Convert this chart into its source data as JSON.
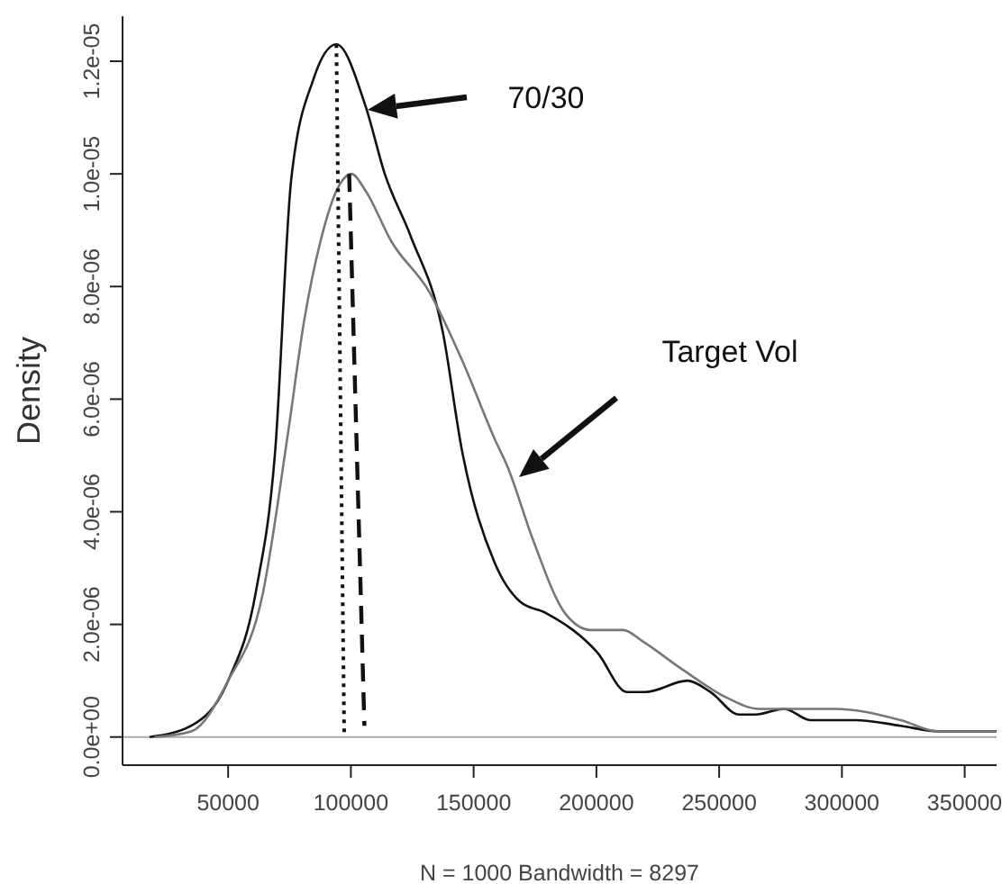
{
  "chart_data": {
    "type": "line",
    "xlabel": "N = 1000   Bandwidth = 8297",
    "ylabel": "Density",
    "xlim": [
      7000,
      363000
    ],
    "xticks": [
      50000,
      100000,
      150000,
      200000,
      250000,
      300000,
      350000
    ],
    "ylim": [
      -5e-07,
      1.28e-05
    ],
    "yticks": [
      {
        "value": 0,
        "label": "0.0e+00"
      },
      {
        "value": 2e-06,
        "label": "2.0e-06"
      },
      {
        "value": 4e-06,
        "label": "4.0e-06"
      },
      {
        "value": 6e-06,
        "label": "6.0e-06"
      },
      {
        "value": 8e-06,
        "label": "8.0e-06"
      },
      {
        "value": 1e-05,
        "label": "1.0e-05"
      },
      {
        "value": 1.2e-05,
        "label": "1.2e-05"
      }
    ],
    "marker": "none",
    "series": [
      {
        "color": "#111111",
        "line_style": "solid",
        "x": [
          18000,
          35000,
          50000,
          61400,
          69200,
          75700,
          84900,
          94100,
          106000,
          113800,
          124300,
          137400,
          145200,
          158500,
          169000,
          179500,
          200400,
          212400,
          220000,
          237100,
          246400,
          258200,
          264800,
          276600,
          287100,
          305500,
          323900,
          339300,
          363000
        ],
        "values": [
          0,
          2e-07,
          1e-06,
          2.6e-06,
          5.1e-06,
          9.9e-06,
          1.17e-05,
          1.23e-05,
          1.12e-05,
          1e-05,
          8.9e-06,
          7.2e-06,
          5.1e-06,
          3.1e-06,
          2.4e-06,
          2.2e-06,
          1.5e-06,
          8e-07,
          8e-07,
          1e-06,
          8e-07,
          4e-07,
          4e-07,
          5e-07,
          3e-07,
          3e-07,
          2e-07,
          1e-07,
          1e-07
        ]
      },
      {
        "color": "#777777",
        "line_style": "solid",
        "x": [
          20000,
          35000,
          50000,
          63900,
          74400,
          81000,
          87600,
          95300,
          100200,
          106000,
          116500,
          132000,
          145200,
          158500,
          163800,
          174200,
          187200,
          197800,
          210900,
          218800,
          235000,
          253000,
          266100,
          297400,
          323900,
          339300,
          363000
        ],
        "values": [
          0,
          1e-07,
          1e-06,
          2.5e-06,
          5.4e-06,
          7.4e-06,
          8.8e-06,
          9.8e-06,
          1e-05,
          9.7e-06,
          8.8e-06,
          7.9e-06,
          6.7e-06,
          5.3e-06,
          4.8e-06,
          3.5e-06,
          2.2e-06,
          1.9e-06,
          1.9e-06,
          1.7e-06,
          1.2e-06,
          7e-07,
          5e-07,
          5e-07,
          3e-07,
          1e-07,
          1e-07
        ]
      },
      {
        "color": "#111111",
        "line_style": "dotted",
        "x": [
          94100,
          97300
        ],
        "values": [
          1.23e-05,
          0
        ]
      },
      {
        "color": "#111111",
        "line_style": "dashed",
        "x": [
          99300,
          105500
        ],
        "values": [
          1e-05,
          2e-07
        ]
      }
    ],
    "ref_lines": [
      {
        "axis": "y",
        "value": 0,
        "color": "#aaaaaa"
      }
    ],
    "annotations": [
      "70/30",
      "Target Vol"
    ]
  }
}
